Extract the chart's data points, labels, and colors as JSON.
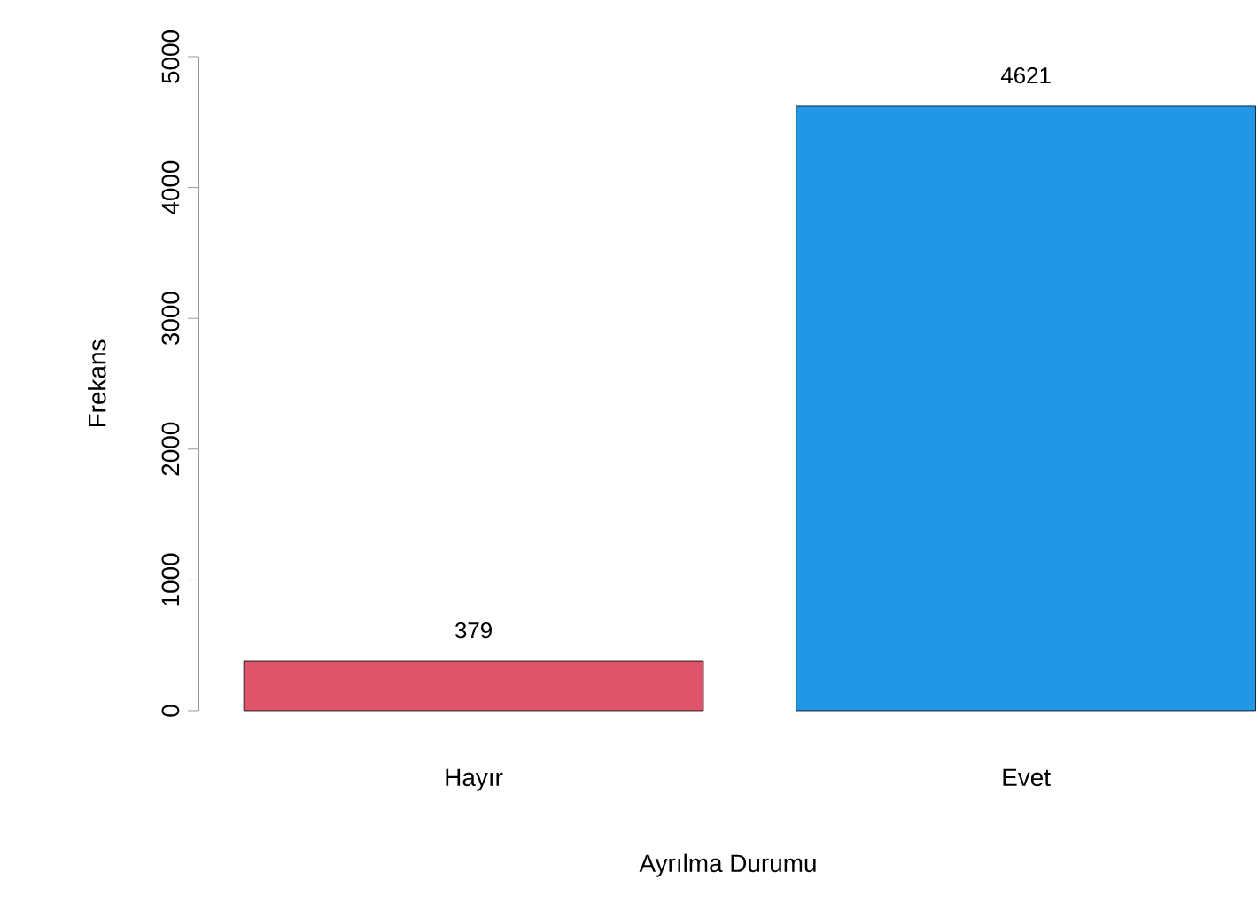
{
  "chart_data": {
    "type": "bar",
    "xlabel": "Ayrılma Durumu",
    "ylabel": "Frekans",
    "categories": [
      "Hayır",
      "Evet"
    ],
    "values": [
      379,
      4621
    ],
    "colors": [
      "#df536b",
      "#2297e6"
    ],
    "ylim": [
      0,
      5000
    ],
    "yticks": [
      0,
      1000,
      2000,
      3000,
      4000,
      5000
    ],
    "data_labels": true
  }
}
